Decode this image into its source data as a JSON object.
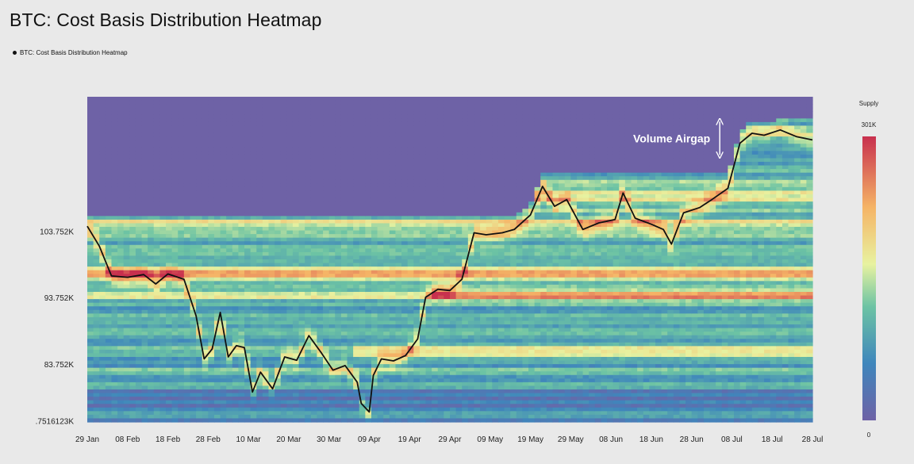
{
  "title": "BTC: Cost Basis Distribution Heatmap",
  "legend": {
    "label": "BTC: Cost Basis Distribution Heatmap",
    "color": "#111111"
  },
  "chart_data": {
    "type": "heatmap",
    "title": "BTC: Cost Basis Distribution Heatmap",
    "x_ticks": [
      "29 Jan",
      "08 Feb",
      "18 Feb",
      "28 Feb",
      "10 Mar",
      "20 Mar",
      "30 Mar",
      "09 Apr",
      "19 Apr",
      "29 Apr",
      "09 May",
      "19 May",
      "29 May",
      "08 Jun",
      "18 Jun",
      "28 Jun",
      "08 Jul",
      "18 Jul",
      "28 Jul"
    ],
    "y_ticks": [
      "103.752K",
      "93.752K",
      "83.752K",
      "75161​23K"
    ],
    "y_tick_labels": [
      "103.752K",
      "93.752K",
      "83.752K",
      ".7516123K"
    ],
    "y_tick_values": [
      103752,
      93752,
      83752,
      75161.23
    ],
    "ylim": [
      75000,
      124000
    ],
    "colorbar": {
      "title": "Supply",
      "max_label": "301K",
      "min_label": "0",
      "range": [
        0,
        301000
      ]
    },
    "annotation": {
      "text": "Volume Airgap",
      "y_range": [
        115000,
        120500
      ],
      "date": "2025-07-05"
    },
    "series": [
      {
        "name": "BTC: Cost Basis Distribution Heatmap",
        "color": "#111111",
        "x": [
          "2025-01-29",
          "2025-02-01",
          "2025-02-04",
          "2025-02-08",
          "2025-02-12",
          "2025-02-15",
          "2025-02-18",
          "2025-02-22",
          "2025-02-25",
          "2025-02-27",
          "2025-03-01",
          "2025-03-03",
          "2025-03-05",
          "2025-03-07",
          "2025-03-09",
          "2025-03-11",
          "2025-03-13",
          "2025-03-16",
          "2025-03-19",
          "2025-03-22",
          "2025-03-25",
          "2025-03-28",
          "2025-03-31",
          "2025-04-03",
          "2025-04-06",
          "2025-04-07",
          "2025-04-09",
          "2025-04-10",
          "2025-04-12",
          "2025-04-15",
          "2025-04-18",
          "2025-04-21",
          "2025-04-23",
          "2025-04-26",
          "2025-04-29",
          "2025-05-02",
          "2025-05-05",
          "2025-05-08",
          "2025-05-12",
          "2025-05-15",
          "2025-05-19",
          "2025-05-22",
          "2025-05-25",
          "2025-05-28",
          "2025-06-01",
          "2025-06-05",
          "2025-06-09",
          "2025-06-11",
          "2025-06-14",
          "2025-06-18",
          "2025-06-21",
          "2025-06-23",
          "2025-06-26",
          "2025-06-30",
          "2025-07-03",
          "2025-07-07",
          "2025-07-10",
          "2025-07-13",
          "2025-07-16",
          "2025-07-20",
          "2025-07-24",
          "2025-07-28"
        ],
        "y": [
          104500,
          101500,
          97000,
          96800,
          97200,
          95800,
          97300,
          96500,
          91000,
          84500,
          86000,
          91500,
          84800,
          86500,
          86200,
          79500,
          82500,
          80000,
          84800,
          84300,
          88000,
          85500,
          82800,
          83500,
          81000,
          77800,
          76500,
          82000,
          84500,
          84200,
          85000,
          87500,
          93800,
          95000,
          94800,
          96500,
          103500,
          103200,
          103500,
          104000,
          106200,
          110500,
          107500,
          108500,
          104000,
          105000,
          105500,
          109500,
          105700,
          104800,
          104000,
          101800,
          106500,
          107300,
          108500,
          110200,
          117000,
          118500,
          118200,
          119000,
          118000,
          117500
        ]
      }
    ]
  }
}
